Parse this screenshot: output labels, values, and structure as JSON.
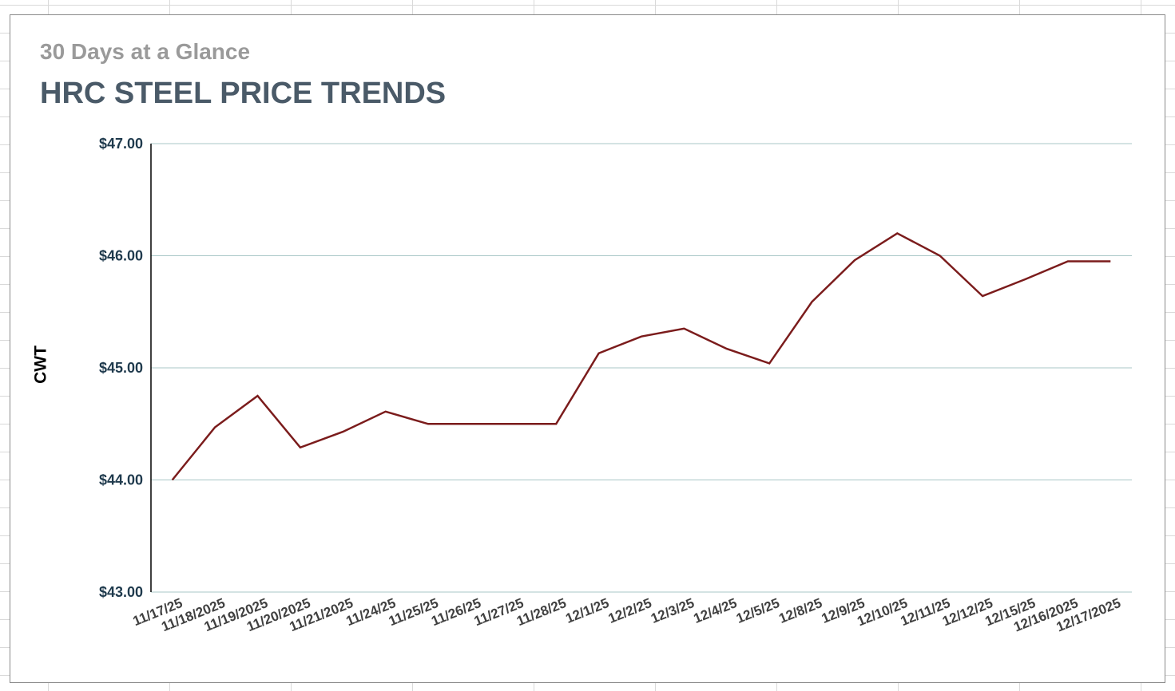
{
  "chart_data": {
    "type": "line",
    "subtitle": "30 Days at a Glance",
    "title": "HRC STEEL PRICE TRENDS",
    "xlabel": "",
    "ylabel": "CWT",
    "ylim": [
      43,
      47
    ],
    "yticks": [
      {
        "value": 47,
        "label": "$47.00"
      },
      {
        "value": 46,
        "label": "$46.00"
      },
      {
        "value": 45,
        "label": "$45.00"
      },
      {
        "value": 44,
        "label": "$44.00"
      },
      {
        "value": 43,
        "label": "$43.00"
      }
    ],
    "grid": true,
    "legend": "none",
    "line_color": "#7b1c1c",
    "grid_color": "#a9c7c7",
    "categories": [
      "11/17/25",
      "11/18/2025",
      "11/19/2025",
      "11/20/2025",
      "11/21/2025",
      "11/24/25",
      "11/25/25",
      "11/26/25",
      "11/27/25",
      "11/28/25",
      "12/1/25",
      "12/2/25",
      "12/3/25",
      "12/4/25",
      "12/5/25",
      "12/8/25",
      "12/9/25",
      "12/10/25",
      "12/11/25",
      "12/12/25",
      "12/15/25",
      "12/16/2025",
      "12/17/2025"
    ],
    "series": [
      {
        "values": [
          44.0,
          44.47,
          44.75,
          44.29,
          44.43,
          44.61,
          44.5,
          44.5,
          44.5,
          44.5,
          45.13,
          45.28,
          45.35,
          45.17,
          45.04,
          45.59,
          45.96,
          46.2,
          46.0,
          45.64,
          45.79,
          45.95,
          45.95
        ]
      }
    ]
  }
}
